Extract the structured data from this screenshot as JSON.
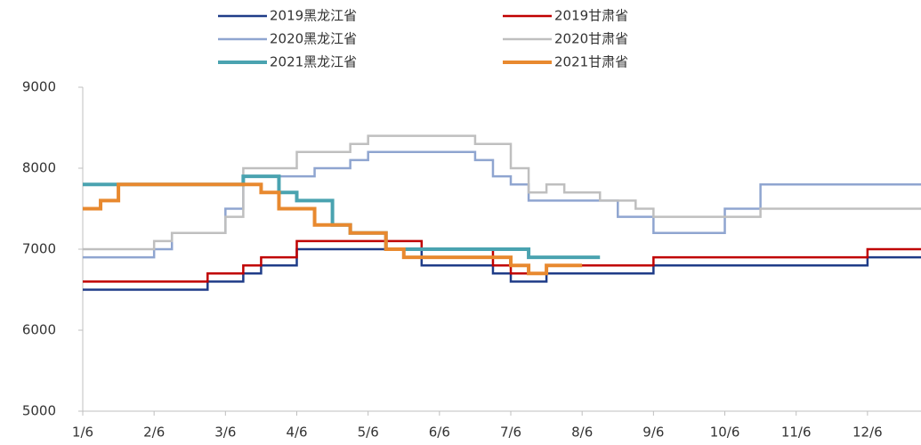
{
  "chart_data": {
    "type": "line",
    "categories": [
      "1/6",
      null,
      null,
      null,
      "2/6",
      null,
      null,
      null,
      "3/6",
      null,
      null,
      null,
      "4/6",
      null,
      null,
      null,
      "5/6",
      null,
      null,
      null,
      "6/6",
      null,
      null,
      null,
      "7/6",
      null,
      null,
      null,
      "8/6",
      null,
      null,
      null,
      "9/6",
      null,
      null,
      null,
      "10/6",
      null,
      null,
      null,
      "11/6",
      null,
      null,
      null,
      "12/6",
      null,
      null,
      null
    ],
    "series": [
      {
        "name": "2019黑龙江省",
        "color": "#1f3c88",
        "width": 2.5,
        "values": [
          6500,
          6500,
          6500,
          6500,
          6500,
          6500,
          6500,
          6600,
          6600,
          6700,
          6800,
          6800,
          7000,
          7000,
          7000,
          7000,
          7000,
          7000,
          7000,
          6800,
          6800,
          6800,
          6800,
          6700,
          6600,
          6600,
          6700,
          6700,
          6700,
          6700,
          6700,
          6700,
          6800,
          6800,
          6800,
          6800,
          6800,
          6800,
          6800,
          6800,
          6800,
          6800,
          6800,
          6800,
          6900,
          6900,
          6900,
          6900
        ]
      },
      {
        "name": "2019甘肃省",
        "color": "#c00000",
        "width": 2.5,
        "values": [
          6600,
          6600,
          6600,
          6600,
          6600,
          6600,
          6600,
          6700,
          6700,
          6800,
          6900,
          6900,
          7100,
          7100,
          7100,
          7100,
          7100,
          7100,
          7100,
          7000,
          7000,
          7000,
          7000,
          6800,
          6700,
          6700,
          6800,
          6800,
          6800,
          6800,
          6800,
          6800,
          6900,
          6900,
          6900,
          6900,
          6900,
          6900,
          6900,
          6900,
          6900,
          6900,
          6900,
          6900,
          7000,
          7000,
          7000,
          7000
        ]
      },
      {
        "name": "2020黑龙江省",
        "color": "#8fa5d0",
        "width": 2.5,
        "values": [
          6900,
          6900,
          6900,
          6900,
          7000,
          7200,
          7200,
          7200,
          7500,
          7900,
          7900,
          7900,
          7900,
          8000,
          8000,
          8100,
          8200,
          8200,
          8200,
          8200,
          8200,
          8200,
          8100,
          7900,
          7800,
          7600,
          7600,
          7600,
          7600,
          7600,
          7400,
          7400,
          7200,
          7200,
          7200,
          7200,
          7500,
          7500,
          7800,
          7800,
          7800,
          7800,
          7800,
          7800,
          7800,
          7800,
          7800,
          7800
        ]
      },
      {
        "name": "2020甘肃省",
        "color": "#bfbfbf",
        "width": 2.5,
        "values": [
          7000,
          7000,
          7000,
          7000,
          7100,
          7200,
          7200,
          7200,
          7400,
          8000,
          8000,
          8000,
          8200,
          8200,
          8200,
          8300,
          8400,
          8400,
          8400,
          8400,
          8400,
          8400,
          8300,
          8300,
          8000,
          7700,
          7800,
          7700,
          7700,
          7600,
          7600,
          7500,
          7400,
          7400,
          7400,
          7400,
          7400,
          7400,
          7500,
          7500,
          7500,
          7500,
          7500,
          7500,
          7500,
          7500,
          7500,
          7500
        ]
      },
      {
        "name": "2021黑龙江省",
        "color": "#4aa3b0",
        "width": 4,
        "values": [
          7800,
          7800,
          7800,
          7800,
          7800,
          7800,
          7800,
          7800,
          7800,
          7900,
          7900,
          7700,
          7600,
          7600,
          7300,
          7200,
          7200,
          7000,
          7000,
          7000,
          7000,
          7000,
          7000,
          7000,
          7000,
          6900,
          6900,
          6900,
          6900,
          6900,
          null,
          null,
          null,
          null,
          null,
          null,
          null,
          null,
          null,
          null,
          null,
          null,
          null,
          null,
          null,
          null,
          null,
          null
        ]
      },
      {
        "name": "2021甘肃省",
        "color": "#e8892f",
        "width": 4,
        "values": [
          7500,
          7600,
          7800,
          7800,
          7800,
          7800,
          7800,
          7800,
          7800,
          7800,
          7700,
          7500,
          7500,
          7300,
          7300,
          7200,
          7200,
          7000,
          6900,
          6900,
          6900,
          6900,
          6900,
          6900,
          6800,
          6700,
          6800,
          6800,
          6800,
          null,
          null,
          null,
          null,
          null,
          null,
          null,
          null,
          null,
          null,
          null,
          null,
          null,
          null,
          null,
          null,
          null,
          null,
          null
        ]
      }
    ],
    "ylim": [
      5000,
      9000
    ],
    "yticks": [
      5000,
      6000,
      7000,
      8000,
      9000
    ],
    "grid": false
  }
}
